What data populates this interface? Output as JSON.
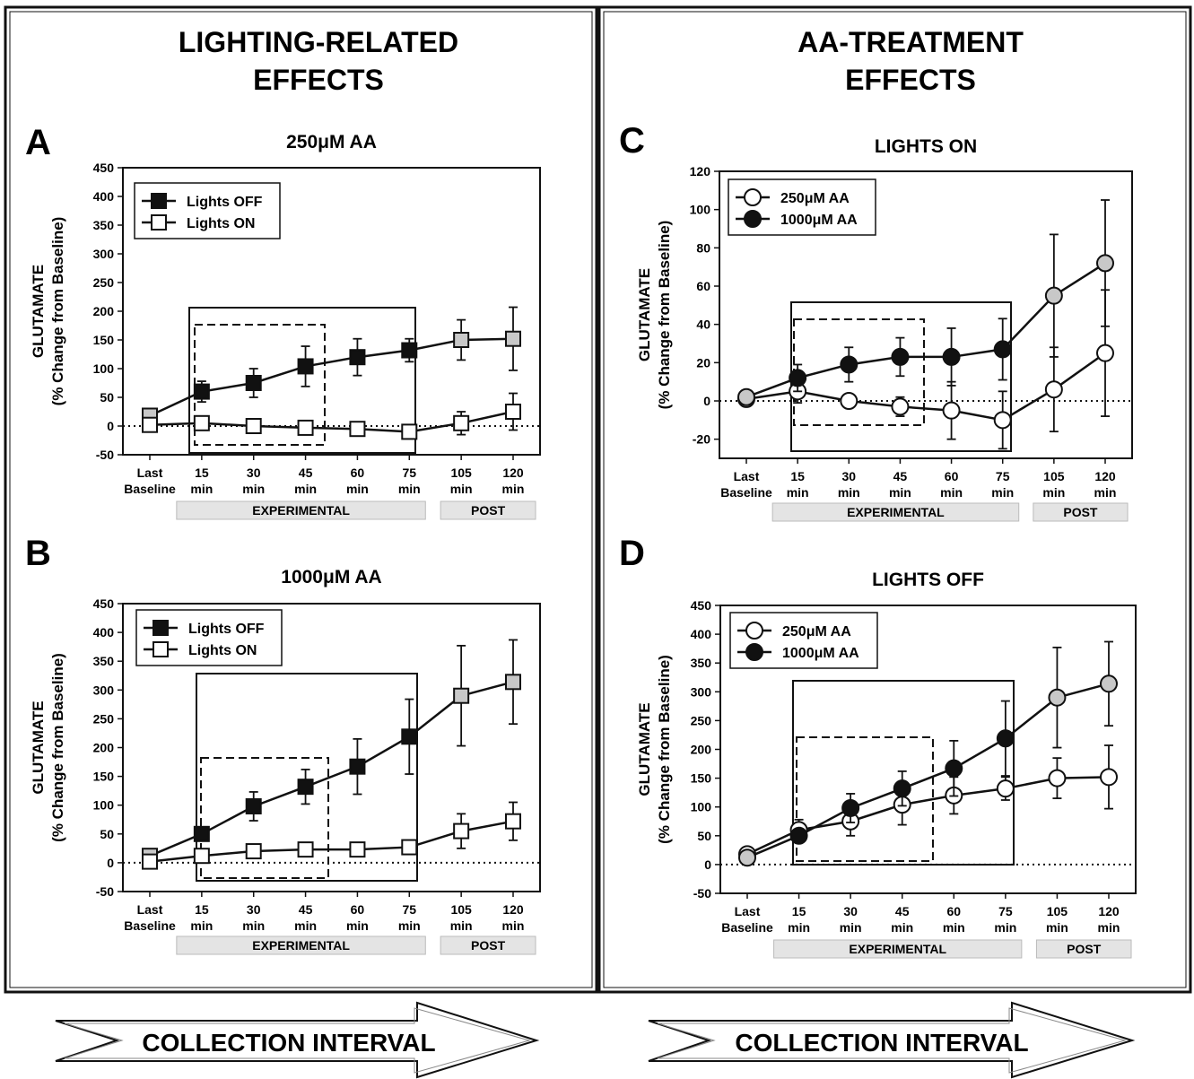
{
  "columns": [
    {
      "title_line1": "LIGHTING-RELATED",
      "title_line2": "EFFECTS"
    },
    {
      "title_line1": "AA-TREATMENT",
      "title_line2": "EFFECTS"
    }
  ],
  "footer": {
    "label": "COLLECTION INTERVAL"
  },
  "axis_common": {
    "ylabel_line1": "GLUTAMATE",
    "ylabel_line2": "(% Change from Baseline)",
    "x_ticks_top": [
      "Last",
      "15",
      "30",
      "45",
      "60",
      "75",
      "105",
      "120"
    ],
    "x_ticks_bottom": [
      "Baseline",
      "min",
      "min",
      "min",
      "min",
      "min",
      "min",
      "min"
    ],
    "bands": [
      "EXPERIMENTAL",
      "POST"
    ]
  },
  "colors": {
    "filled": "#111111",
    "open": "#ffffff",
    "post_gray": "#c8c8c8",
    "band": "#e4e4e4"
  },
  "chart_data": [
    {
      "panel": "A",
      "title": "250μM AA",
      "type": "line",
      "categories": [
        "Last Baseline",
        "15 min",
        "30 min",
        "45 min",
        "60 min",
        "75 min",
        "105 min",
        "120 min"
      ],
      "ylim": [
        -50,
        450
      ],
      "yticks": [
        -50,
        0,
        50,
        100,
        150,
        200,
        250,
        300,
        350,
        400,
        450
      ],
      "marker": "square",
      "series": [
        {
          "name": "Lights OFF",
          "fill": "filled",
          "values": [
            18,
            60,
            75,
            104,
            120,
            132,
            150,
            152
          ],
          "err": [
            0,
            18,
            25,
            35,
            32,
            20,
            35,
            55
          ]
        },
        {
          "name": "Lights ON",
          "fill": "open",
          "values": [
            2,
            5,
            0,
            -3,
            -5,
            -10,
            5,
            25
          ],
          "err": [
            0,
            8,
            5,
            5,
            12,
            10,
            20,
            32
          ]
        }
      ]
    },
    {
      "panel": "B",
      "title": "1000μM AA",
      "type": "line",
      "categories": [
        "Last Baseline",
        "15 min",
        "30 min",
        "45 min",
        "60 min",
        "75 min",
        "105 min",
        "120 min"
      ],
      "ylim": [
        -50,
        450
      ],
      "yticks": [
        -50,
        0,
        50,
        100,
        150,
        200,
        250,
        300,
        350,
        400,
        450
      ],
      "marker": "square",
      "series": [
        {
          "name": "Lights OFF",
          "fill": "filled",
          "values": [
            12,
            50,
            98,
            132,
            167,
            219,
            290,
            314
          ],
          "err": [
            0,
            8,
            25,
            30,
            48,
            65,
            87,
            73
          ]
        },
        {
          "name": "Lights ON",
          "fill": "open",
          "values": [
            2,
            12,
            20,
            23,
            23,
            27,
            55,
            72
          ],
          "err": [
            0,
            5,
            5,
            5,
            12,
            12,
            30,
            33
          ]
        }
      ]
    },
    {
      "panel": "C",
      "title": "LIGHTS ON",
      "type": "line",
      "categories": [
        "Last Baseline",
        "15 min",
        "30 min",
        "45 min",
        "60 min",
        "75 min",
        "105 min",
        "120 min"
      ],
      "ylim": [
        -30,
        120
      ],
      "yticks": [
        -20,
        0,
        20,
        40,
        60,
        80,
        100,
        120
      ],
      "marker": "circle",
      "series": [
        {
          "name": "250μM AA",
          "fill": "open",
          "values": [
            1,
            5,
            0,
            -3,
            -5,
            -10,
            6,
            25
          ],
          "err": [
            0,
            6,
            3,
            5,
            15,
            15,
            22,
            33
          ]
        },
        {
          "name": "1000μM AA",
          "fill": "filled",
          "values": [
            2,
            12,
            19,
            23,
            23,
            27,
            55,
            72
          ],
          "err": [
            0,
            7,
            9,
            10,
            15,
            16,
            32,
            33
          ]
        }
      ]
    },
    {
      "panel": "D",
      "title": "LIGHTS OFF",
      "type": "line",
      "categories": [
        "Last Baseline",
        "15 min",
        "30 min",
        "45 min",
        "60 min",
        "75 min",
        "105 min",
        "120 min"
      ],
      "ylim": [
        -50,
        450
      ],
      "yticks": [
        -50,
        0,
        50,
        100,
        150,
        200,
        250,
        300,
        350,
        400,
        450
      ],
      "marker": "circle",
      "series": [
        {
          "name": "250μM AA",
          "fill": "open",
          "values": [
            18,
            60,
            75,
            104,
            120,
            132,
            150,
            152
          ],
          "err": [
            0,
            18,
            25,
            35,
            32,
            20,
            35,
            55
          ]
        },
        {
          "name": "1000μM AA",
          "fill": "filled",
          "values": [
            12,
            50,
            98,
            132,
            167,
            219,
            290,
            314
          ],
          "err": [
            0,
            8,
            25,
            30,
            48,
            65,
            87,
            73
          ]
        }
      ]
    }
  ]
}
